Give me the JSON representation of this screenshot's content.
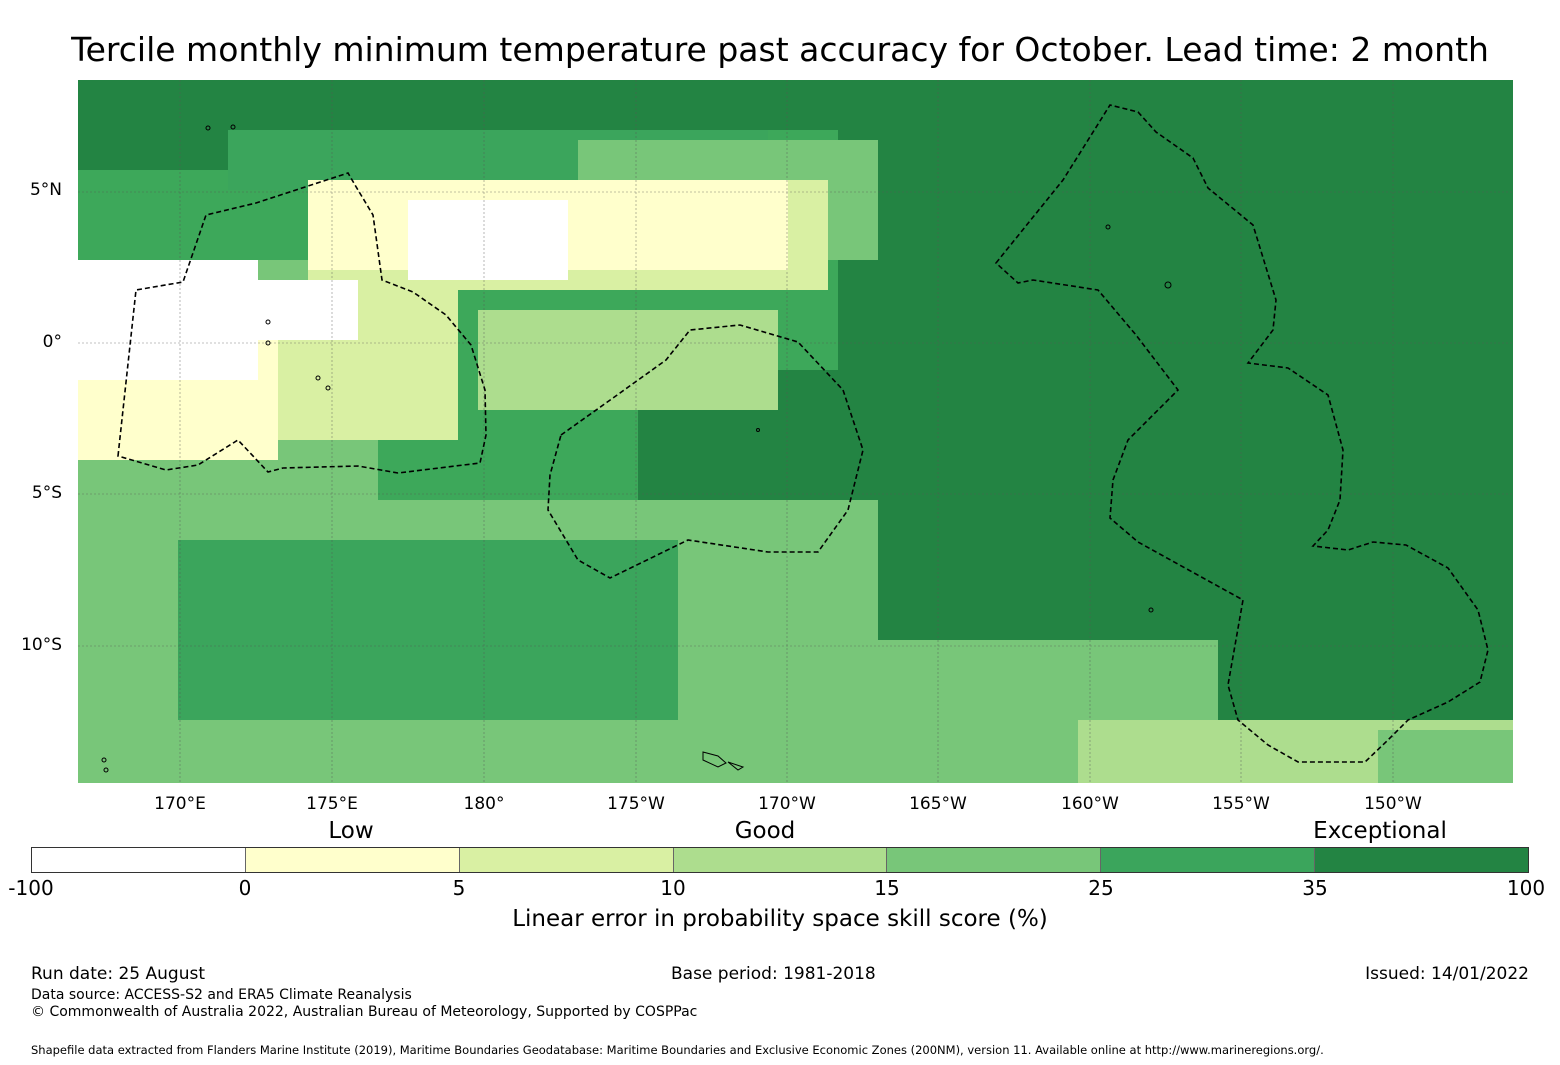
{
  "title": "Tercile monthly minimum temperature past accuracy for October. Lead time: 2 month",
  "map": {
    "lat_labels": [
      "5°N",
      "0°",
      "5°S",
      "10°S"
    ],
    "lon_labels": [
      "170°E",
      "175°E",
      "180°",
      "175°W",
      "170°W",
      "165°W",
      "160°W",
      "155°W",
      "150°W"
    ],
    "extent": {
      "lon_min": 166.6,
      "lon_max": 213.9,
      "lat_min": -14.5,
      "lat_max": 8.7
    }
  },
  "legend": {
    "categories": [
      "Low",
      "Good",
      "Exceptional"
    ],
    "ticks": [
      "-100",
      "0",
      "5",
      "10",
      "15",
      "25",
      "35",
      "100"
    ],
    "colors": [
      "#ffffff",
      "#ffffcc",
      "#d9f0a3",
      "#addd8e",
      "#78c679",
      "#3ba55c",
      "#238443"
    ],
    "label": "Linear error in probability space skill score (%)"
  },
  "footer": {
    "run_date": "Run date: 25 August",
    "base_period": "Base period: 1981-2018",
    "issued": "Issued: 14/01/2022",
    "data_source": "Data source: ACCESS-S2 and ERA5 Climate Reanalysis",
    "copyright": "© Commonwealth of Australia 2022, Australian Bureau of Meteorology, Supported by COSPPac",
    "shapefile": "Shapefile data extracted from Flanders Marine Institute (2019), Maritime Boundaries Geodatabase: Maritime Boundaries and Exclusive Economic Zones (200NM), version 11. Available online at http://www.marineregions.org/."
  }
}
